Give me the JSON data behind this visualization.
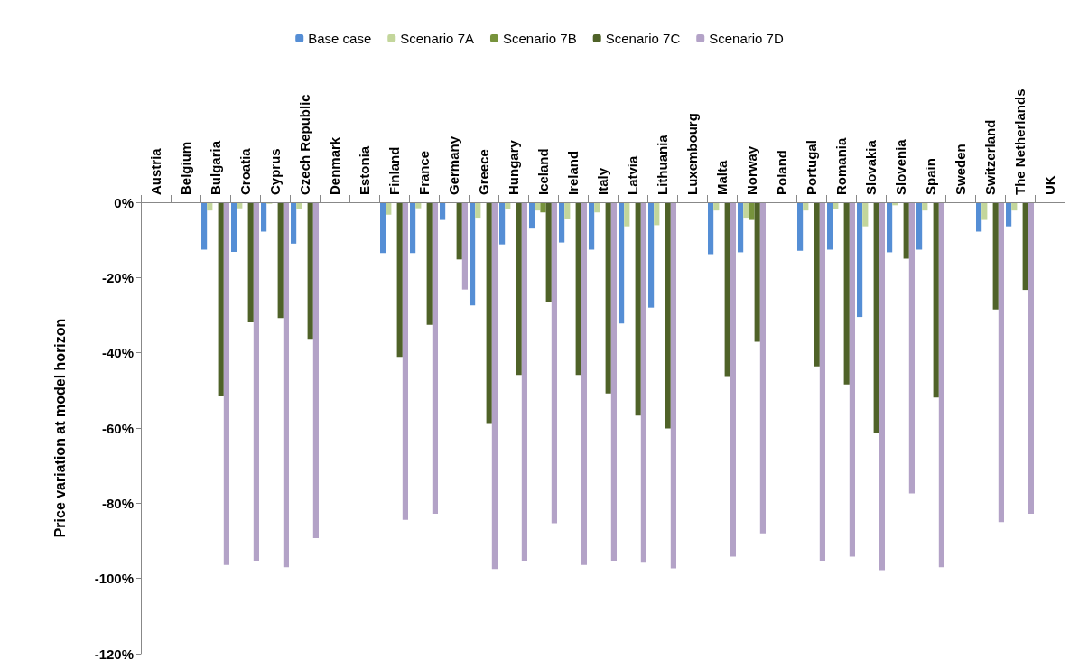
{
  "chart_data": {
    "type": "bar",
    "ylabel": "Price variation at model horizon",
    "categories": [
      "Austria",
      "Belgium",
      "Bulgaria",
      "Croatia",
      "Cyprus",
      "Czech Republic",
      "Denmark",
      "Estonia",
      "Finland",
      "France",
      "Germany",
      "Greece",
      "Hungary",
      "Iceland",
      "Ireland",
      "Italy",
      "Latvia",
      "Lithuania",
      "Luxembourg",
      "Malta",
      "Norway",
      "Poland",
      "Portugal",
      "Romania",
      "Slovakia",
      "Slovenia",
      "Spain",
      "Sweden",
      "Switzerland",
      "The Netherlands",
      "UK"
    ],
    "series": [
      {
        "name": "Base case",
        "color": "#558ed5",
        "values": [
          0,
          0,
          -12.6,
          -13.2,
          -7.8,
          -11,
          0,
          0,
          -13.5,
          -13.5,
          -4.7,
          -27.4,
          -11.2,
          -7,
          -10.7,
          -12.6,
          -32.2,
          -28,
          0,
          -13.8,
          -13.3,
          0,
          -12.9,
          -12.6,
          -30.5,
          -13.3,
          -12.6,
          0,
          -7.8,
          -6.4,
          0
        ]
      },
      {
        "name": "Scenario 7A",
        "color": "#c3d69b",
        "values": [
          0,
          0,
          -2.2,
          -1.6,
          -0.4,
          -1.8,
          0,
          0,
          -3.3,
          -1.6,
          0,
          -4.1,
          -1.8,
          -2.2,
          -4.4,
          -2.7,
          -6.4,
          -6.1,
          0,
          -2.2,
          -4.1,
          0,
          -2.2,
          -1.9,
          -6.4,
          -0.8,
          -2.2,
          0,
          -4.7,
          -2.2,
          0
        ]
      },
      {
        "name": "Scenario 7B",
        "color": "#77933c",
        "values": [
          0,
          0,
          0,
          0,
          0,
          0,
          0,
          0,
          0,
          0,
          0,
          0,
          0,
          -2.7,
          0,
          0,
          0,
          0,
          0,
          0,
          -4.7,
          0,
          0,
          0,
          0,
          0,
          0,
          0,
          0,
          0,
          0
        ]
      },
      {
        "name": "Scenario 7C",
        "color": "#4f6228",
        "values": [
          0,
          0,
          -51.6,
          -31.9,
          -30.8,
          -36.3,
          0,
          0,
          -41.1,
          -32.6,
          -15.2,
          -58.9,
          -45.9,
          -26.6,
          -45.9,
          -50.8,
          -56.7,
          -60.1,
          0,
          -46.2,
          -37.1,
          0,
          -43.6,
          -48.4,
          -61.2,
          -15,
          -51.9,
          0,
          -28.5,
          -23.3,
          0
        ]
      },
      {
        "name": "Scenario 7D",
        "color": "#b3a2c7",
        "values": [
          0,
          0,
          -96.4,
          -95.3,
          -97,
          -89.3,
          0,
          0,
          -84.4,
          -82.8,
          -23.2,
          -97.5,
          -95.3,
          -85.3,
          -96.4,
          -95.3,
          -95.6,
          -97.3,
          0,
          -94.2,
          -88,
          0,
          -95.3,
          -94.2,
          -97.8,
          -77.4,
          -97,
          0,
          -85,
          -82.8,
          0
        ]
      }
    ],
    "ylim": [
      -120,
      0
    ],
    "yticks": [
      {
        "value": -120,
        "label": "-120%"
      },
      {
        "value": -100,
        "label": "-100%"
      },
      {
        "value": -80,
        "label": "-80%"
      },
      {
        "value": -60,
        "label": "-60%"
      },
      {
        "value": -40,
        "label": "-40%"
      },
      {
        "value": -20,
        "label": "-20%"
      },
      {
        "value": 0,
        "label": "0%"
      }
    ],
    "grid": false,
    "legend": "top"
  }
}
